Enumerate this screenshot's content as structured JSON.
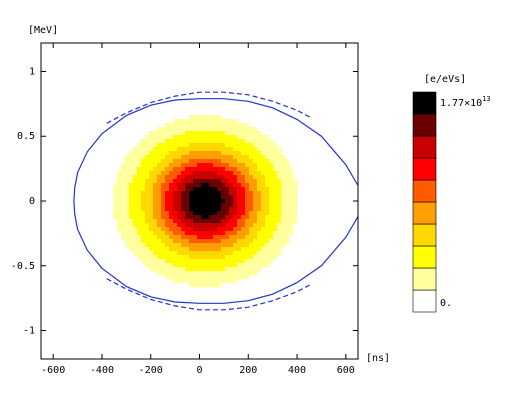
{
  "chart_data": {
    "type": "heatmap",
    "xlabel": "[ns]",
    "ylabel": "[MeV]",
    "xlim": [
      -650,
      650
    ],
    "ylim": [
      -1.22,
      1.22
    ],
    "x_ticks": [
      -600,
      -400,
      -200,
      0,
      200,
      400,
      600
    ],
    "x_tick_labels": [
      "-600",
      "-400",
      "-200",
      "0",
      "200",
      "400",
      "600"
    ],
    "y_ticks": [
      1,
      0.5,
      0,
      -0.5,
      -1
    ],
    "y_tick_labels": [
      "1",
      "0.5",
      "0",
      "-0.5",
      "-1"
    ],
    "density": {
      "center": [
        25,
        0
      ],
      "sigma_t_ns": 150,
      "sigma_e_mev": 0.26,
      "extent_t_ns": [
        -520,
        520
      ],
      "extent_e_mev": [
        -0.8,
        0.8
      ]
    },
    "colorbar": {
      "unit": "[e/eVs]",
      "max_label_base": "1.77×10",
      "max_label_exp": "13",
      "min_label": "0.",
      "levels": [
        "#000000",
        "#6b0000",
        "#c80000",
        "#ff0000",
        "#ff5a00",
        "#ff9e00",
        "#ffd800",
        "#ffff00",
        "#ffff9e",
        "#ffffff"
      ]
    },
    "separatrix": {
      "solid": [
        [
          650,
          0.12
        ],
        [
          600,
          0.28
        ],
        [
          500,
          0.5
        ],
        [
          400,
          0.63
        ],
        [
          300,
          0.72
        ],
        [
          200,
          0.77
        ],
        [
          100,
          0.79
        ],
        [
          0,
          0.79
        ],
        [
          -100,
          0.78
        ],
        [
          -200,
          0.74
        ],
        [
          -300,
          0.66
        ],
        [
          -400,
          0.52
        ],
        [
          -460,
          0.38
        ],
        [
          -500,
          0.22
        ],
        [
          -512,
          0.1
        ],
        [
          -515,
          0
        ],
        [
          -512,
          -0.1
        ],
        [
          -500,
          -0.22
        ],
        [
          -460,
          -0.38
        ],
        [
          -400,
          -0.52
        ],
        [
          -300,
          -0.66
        ],
        [
          -200,
          -0.74
        ],
        [
          -100,
          -0.78
        ],
        [
          0,
          -0.79
        ],
        [
          100,
          -0.79
        ],
        [
          200,
          -0.77
        ],
        [
          300,
          -0.72
        ],
        [
          400,
          -0.63
        ],
        [
          500,
          -0.5
        ],
        [
          600,
          -0.28
        ],
        [
          650,
          -0.12
        ]
      ],
      "dashed_top": [
        [
          -380,
          0.6
        ],
        [
          -300,
          0.68
        ],
        [
          -200,
          0.76
        ],
        [
          -100,
          0.81
        ],
        [
          0,
          0.84
        ],
        [
          100,
          0.84
        ],
        [
          200,
          0.82
        ],
        [
          300,
          0.77
        ],
        [
          400,
          0.7
        ],
        [
          460,
          0.64
        ]
      ],
      "dashed_bottom": [
        [
          -380,
          -0.6
        ],
        [
          -300,
          -0.68
        ],
        [
          -200,
          -0.76
        ],
        [
          -100,
          -0.81
        ],
        [
          0,
          -0.84
        ],
        [
          100,
          -0.84
        ],
        [
          200,
          -0.82
        ],
        [
          300,
          -0.77
        ],
        [
          400,
          -0.7
        ],
        [
          460,
          -0.64
        ]
      ],
      "color": "#2233cc"
    }
  }
}
